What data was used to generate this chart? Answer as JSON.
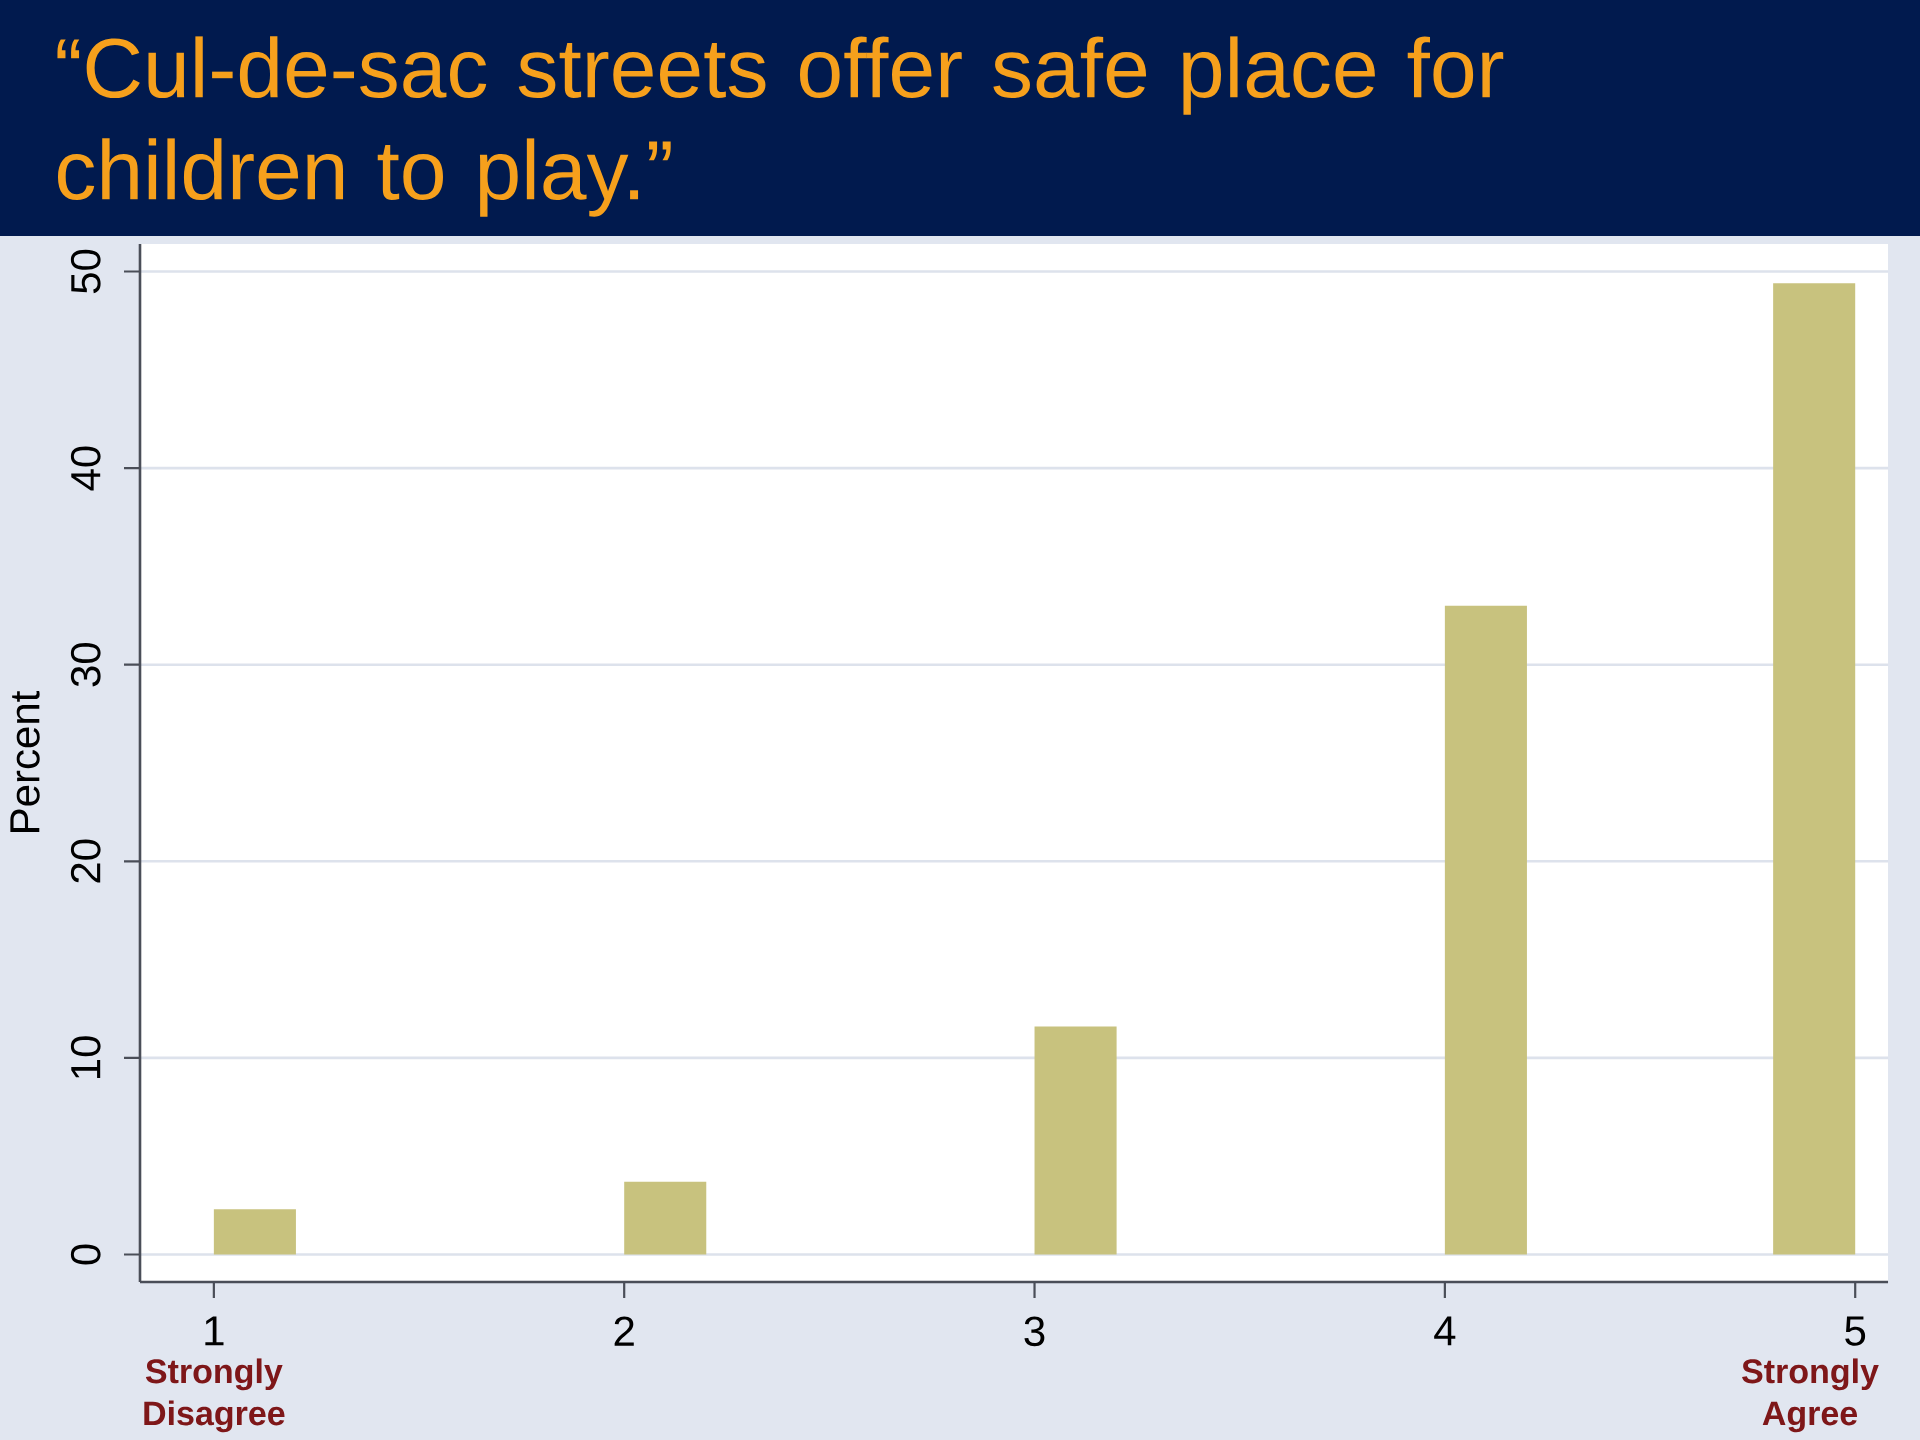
{
  "chart_data": {
    "type": "histogram",
    "title": "“Cul-de-sac streets offer safe place for children to play.”",
    "ylabel": "Percent",
    "bins": [
      1,
      1.2,
      1.4,
      1.6,
      1.8,
      2,
      2.2,
      2.4,
      2.6,
      2.8,
      3,
      3.2,
      3.4,
      3.6,
      3.8,
      4,
      4.2,
      4.4,
      4.6,
      4.8,
      5
    ],
    "values": [
      2.3,
      0,
      0,
      0,
      0,
      3.7,
      0,
      0,
      0,
      0,
      11.6,
      0,
      0,
      0,
      0,
      33.0,
      0,
      0,
      0,
      49.4
    ],
    "color": "#c8c27e",
    "xlim": [
      0.82,
      5.08
    ],
    "ylim": [
      -1.4,
      51.4
    ],
    "xticks": [
      1,
      2,
      3,
      4,
      5
    ],
    "yticks": [
      0,
      10,
      20,
      30,
      40,
      50
    ],
    "grid": "y",
    "annotations": [
      "Strongly Disagree",
      "Strongly Agree"
    ]
  }
}
